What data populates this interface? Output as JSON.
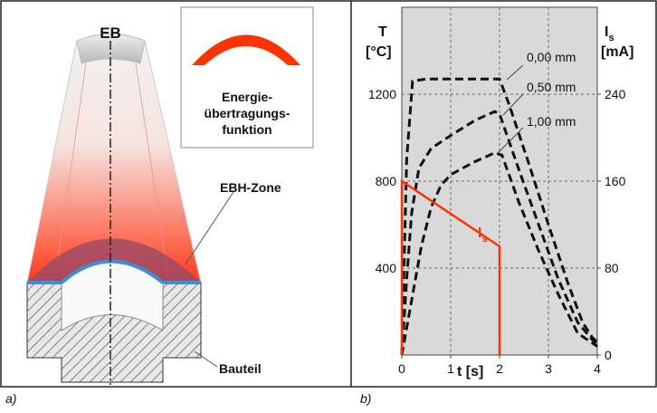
{
  "panel_a": {
    "label": "a)",
    "beam": "EB",
    "inset_lines": [
      "Energie-",
      "übertragungs-",
      "funktion"
    ],
    "zone": "EBH-Zone",
    "part": "Bauteil"
  },
  "chart_data": {
    "type": "line",
    "panel_label": "b)",
    "x_label": "t [s]",
    "y_label": [
      "T",
      "[°C]"
    ],
    "y2_label": {
      "text": "I",
      "sub": "s",
      "unit": "[mA]"
    },
    "xlim": [
      0,
      4
    ],
    "xticks": [
      0,
      1,
      2,
      3,
      4
    ],
    "ylim": [
      0,
      1600
    ],
    "yticks": [
      400,
      800,
      1200
    ],
    "y2lim": [
      0,
      320
    ],
    "y2ticks": [
      0,
      80,
      160,
      240
    ],
    "grid": true,
    "series": [
      {
        "name": "0,00 mm",
        "color": "#111111",
        "dash": true,
        "x": [
          0,
          0.1,
          0.22,
          0.5,
          1,
          1.5,
          2,
          2.2,
          2.6,
          3,
          3.4,
          3.7,
          3.9,
          4
        ],
        "values": [
          0,
          900,
          1260,
          1270,
          1270,
          1270,
          1270,
          1150,
          880,
          600,
          330,
          150,
          80,
          60
        ]
      },
      {
        "name": "0,50 mm",
        "color": "#111111",
        "dash": true,
        "x": [
          0,
          0.1,
          0.2,
          0.35,
          0.6,
          1,
          1.5,
          1.9,
          2,
          2.4,
          2.8,
          3.2,
          3.6,
          3.9,
          4
        ],
        "values": [
          0,
          350,
          650,
          860,
          950,
          1010,
          1080,
          1120,
          1110,
          850,
          600,
          350,
          150,
          70,
          50
        ]
      },
      {
        "name": "1,00 mm",
        "color": "#111111",
        "dash": true,
        "x": [
          0,
          0.2,
          0.4,
          0.6,
          0.8,
          1,
          1.5,
          1.9,
          2.05,
          2.4,
          2.8,
          3.2,
          3.6,
          4
        ],
        "values": [
          0,
          250,
          500,
          680,
          780,
          830,
          890,
          930,
          920,
          700,
          480,
          280,
          100,
          40
        ]
      },
      {
        "name": {
          "text": "I",
          "sub": "s"
        },
        "color": "#ff3300",
        "dash": false,
        "axis": "y2",
        "x": [
          0,
          0,
          2,
          2
        ],
        "values": [
          0,
          160,
          100,
          0
        ]
      }
    ]
  }
}
